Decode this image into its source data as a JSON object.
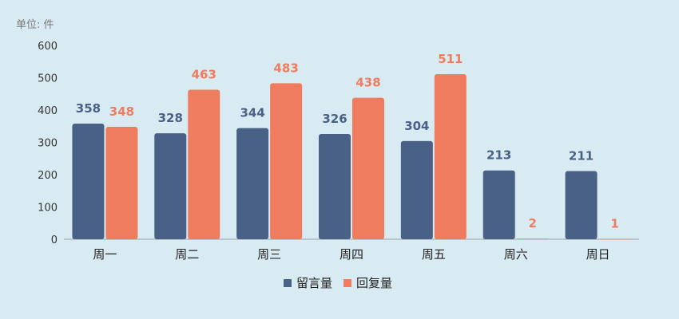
{
  "chart_data": {
    "type": "bar",
    "unit_label": "单位: 件",
    "categories": [
      "周一",
      "周二",
      "周三",
      "周四",
      "周五",
      "周六",
      "周日"
    ],
    "series": [
      {
        "name": "留言量",
        "color": "#4a6187",
        "values": [
          358,
          328,
          344,
          326,
          304,
          213,
          211
        ]
      },
      {
        "name": "回复量",
        "color": "#f07c5f",
        "values": [
          348,
          463,
          483,
          438,
          511,
          2,
          1
        ]
      }
    ],
    "ylim": [
      0,
      600
    ],
    "yticks": [
      0,
      100,
      200,
      300,
      400,
      500,
      600
    ],
    "grid": false,
    "data_labels": true,
    "legend": "bottom-center"
  }
}
